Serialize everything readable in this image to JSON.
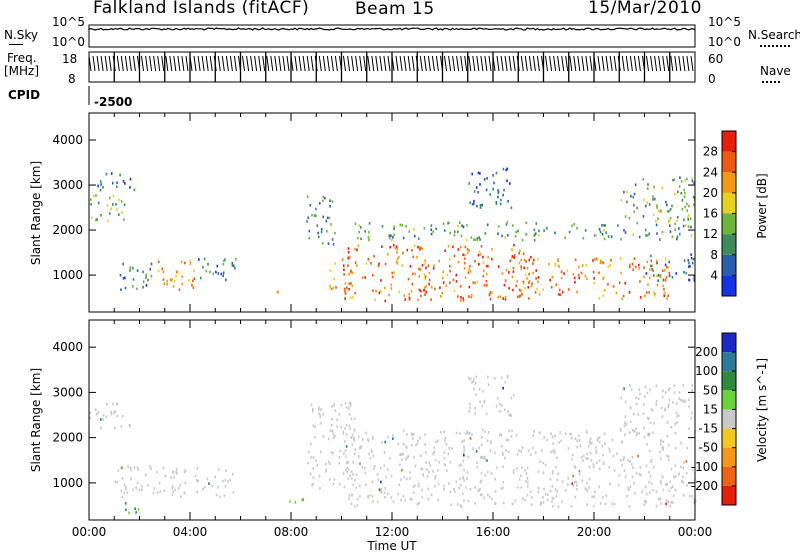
{
  "header": {
    "station": "Falkland Islands (fitACF)",
    "beam": "Beam 15",
    "date": "15/Mar/2010"
  },
  "top_panels": {
    "nsky_label": "N.Sky",
    "nsky_ticks": [
      "10^5",
      "10^0"
    ],
    "nsearch_label": "N.Search",
    "nsearch_ticks": [
      "10^5",
      "10^0"
    ],
    "freq_label": "Freq.",
    "freq_unit": "[MHz]",
    "freq_ticks": [
      "18",
      "8"
    ],
    "nave_label": "Nave",
    "nave_ticks": [
      "60",
      "0"
    ],
    "cpid_label": "CPID",
    "cpid_value": "-2500"
  },
  "chart_data": [
    {
      "type": "heatmap",
      "name": "power",
      "xlabel": "",
      "ylabel": "Slant Range [km]",
      "xlim": [
        0,
        24
      ],
      "ylim": [
        180,
        4600
      ],
      "yticks": [
        1000,
        2000,
        3000,
        4000
      ],
      "colorbar_label": "Power [dB]",
      "colorbar_ticks": [
        4,
        8,
        12,
        16,
        20,
        24,
        28
      ],
      "colorbar_range": [
        0,
        32
      ],
      "colorbar_colors": [
        "#1432e6",
        "#2a5fb0",
        "#3d8a5c",
        "#6cb43a",
        "#e6d21e",
        "#f39a14",
        "#f05a0f",
        "#e61e0a"
      ],
      "regions": [
        {
          "t0": 0.0,
          "t1": 1.6,
          "r0": 2200,
          "r1": 2800,
          "level": 14
        },
        {
          "t0": 0.3,
          "t1": 1.9,
          "r0": 2900,
          "r1": 3300,
          "level": 6
        },
        {
          "t0": 1.0,
          "t1": 2.5,
          "r0": 700,
          "r1": 1300,
          "level": 9
        },
        {
          "t0": 2.7,
          "t1": 4.3,
          "r0": 700,
          "r1": 1400,
          "level": 22
        },
        {
          "t0": 4.3,
          "t1": 5.8,
          "r0": 800,
          "r1": 1400,
          "level": 8
        },
        {
          "t0": 7.4,
          "t1": 8.0,
          "r0": 550,
          "r1": 700,
          "level": 18
        },
        {
          "t0": 8.6,
          "t1": 9.8,
          "r0": 1700,
          "r1": 2800,
          "level": 10
        },
        {
          "t0": 9.5,
          "t1": 10.5,
          "r0": 700,
          "r1": 1500,
          "level": 24
        },
        {
          "t0": 10.0,
          "t1": 17.5,
          "r0": 450,
          "r1": 1700,
          "level": 25
        },
        {
          "t0": 10.5,
          "t1": 24.0,
          "r0": 1800,
          "r1": 2200,
          "level": 11
        },
        {
          "t0": 15.0,
          "t1": 16.8,
          "r0": 2500,
          "r1": 3400,
          "level": 7
        },
        {
          "t0": 17.0,
          "t1": 23.0,
          "r0": 500,
          "r1": 1400,
          "level": 24
        },
        {
          "t0": 21.0,
          "t1": 24.0,
          "r0": 2200,
          "r1": 3200,
          "level": 12
        },
        {
          "t0": 22.0,
          "t1": 24.0,
          "r0": 900,
          "r1": 1500,
          "level": 6
        }
      ]
    },
    {
      "type": "heatmap",
      "name": "velocity",
      "xlabel": "Time UT",
      "ylabel": "Slant Range [km]",
      "xlim": [
        0,
        24
      ],
      "ylim": [
        180,
        4600
      ],
      "xticks": [
        "00:00",
        "04:00",
        "08:00",
        "12:00",
        "16:00",
        "20:00",
        "00:00"
      ],
      "yticks": [
        1000,
        2000,
        3000,
        4000
      ],
      "colorbar_label": "Velocity [m s^-1]",
      "colorbar_ticks": [
        200,
        100,
        50,
        15,
        -15,
        -50,
        -100,
        -200
      ],
      "colorbar_colors": [
        "#1e28c8",
        "#2a7a9a",
        "#2e8a3c",
        "#6ad23a",
        "#c8c8c8",
        "#f2c81e",
        "#f3961a",
        "#ee6414",
        "#e61e0a"
      ],
      "regions": [
        {
          "t0": 0.0,
          "t1": 1.6,
          "r0": 2200,
          "r1": 2800,
          "level": 0
        },
        {
          "t0": 1.0,
          "t1": 5.8,
          "r0": 700,
          "r1": 1400,
          "level": 0
        },
        {
          "t0": 1.4,
          "t1": 2.0,
          "r0": 300,
          "r1": 700,
          "level": 30
        },
        {
          "t0": 7.4,
          "t1": 8.6,
          "r0": 550,
          "r1": 700,
          "level": 25
        },
        {
          "t0": 8.6,
          "t1": 10.5,
          "r0": 900,
          "r1": 2800,
          "level": 0
        },
        {
          "t0": 10.0,
          "t1": 24.0,
          "r0": 500,
          "r1": 2200,
          "level": 0
        },
        {
          "t0": 15.0,
          "t1": 16.8,
          "r0": 2500,
          "r1": 3400,
          "level": 0
        },
        {
          "t0": 21.0,
          "t1": 24.0,
          "r0": 2200,
          "r1": 3200,
          "level": 0
        }
      ]
    }
  ]
}
